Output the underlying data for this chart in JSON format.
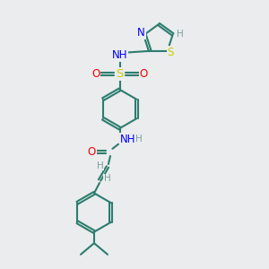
{
  "bg_color": "#eaecee",
  "bond_color": "#2d7d6e",
  "N_color": "#0000ff",
  "O_color": "#ff0000",
  "S_sulfonyl_color": "#cccc00",
  "S_thiazole_color": "#cccc00",
  "N_thiazole_color": "#0000ff",
  "H_color": "#7f9f9f",
  "line_width": 1.5,
  "font_size": 8.5,
  "fig_width": 3.0,
  "fig_height": 3.0,
  "dpi": 100,
  "xlim": [
    0,
    10
  ],
  "ylim": [
    0,
    10
  ]
}
